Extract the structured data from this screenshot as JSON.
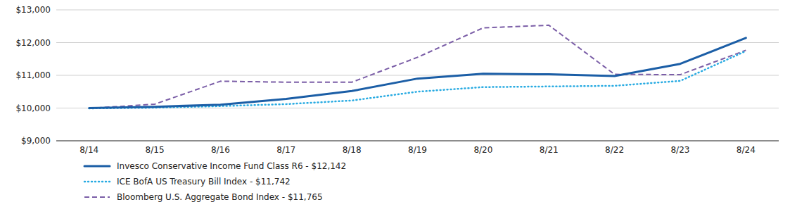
{
  "chart_data": {
    "type": "line",
    "categories": [
      "8/14",
      "8/15",
      "8/16",
      "8/17",
      "8/18",
      "8/19",
      "8/20",
      "8/21",
      "8/22",
      "8/23",
      "8/24"
    ],
    "series": [
      {
        "name": "Invesco Conservative Income Fund Class R6 - $12,142",
        "color": "#1B5EA6",
        "line_style": "solid",
        "values": [
          10000,
          10040,
          10100,
          10280,
          10520,
          10900,
          11050,
          11030,
          10980,
          11350,
          12142
        ]
      },
      {
        "name": "ICE BofA US Treasury Bill Index - $11,742",
        "color": "#29ABE2",
        "line_style": "dotted",
        "values": [
          9990,
          10010,
          10060,
          10120,
          10230,
          10500,
          10640,
          10660,
          10680,
          10830,
          11742
        ]
      },
      {
        "name": "Bloomberg U.S. Aggregate Bond Index - $11,765",
        "color": "#7B5EA7",
        "line_style": "dashed",
        "values": [
          9990,
          10120,
          10820,
          10790,
          10790,
          11550,
          12450,
          12530,
          11030,
          11020,
          11765
        ]
      }
    ],
    "ylim": [
      9000,
      13000
    ],
    "yticks": [
      {
        "value": 9000,
        "label": "$9,000"
      },
      {
        "value": 10000,
        "label": "$10,000"
      },
      {
        "value": 11000,
        "label": "$11,000"
      },
      {
        "value": 12000,
        "label": "$12,000"
      },
      {
        "value": 13000,
        "label": "$13,000"
      }
    ],
    "grid": true,
    "legend": "bottom"
  }
}
